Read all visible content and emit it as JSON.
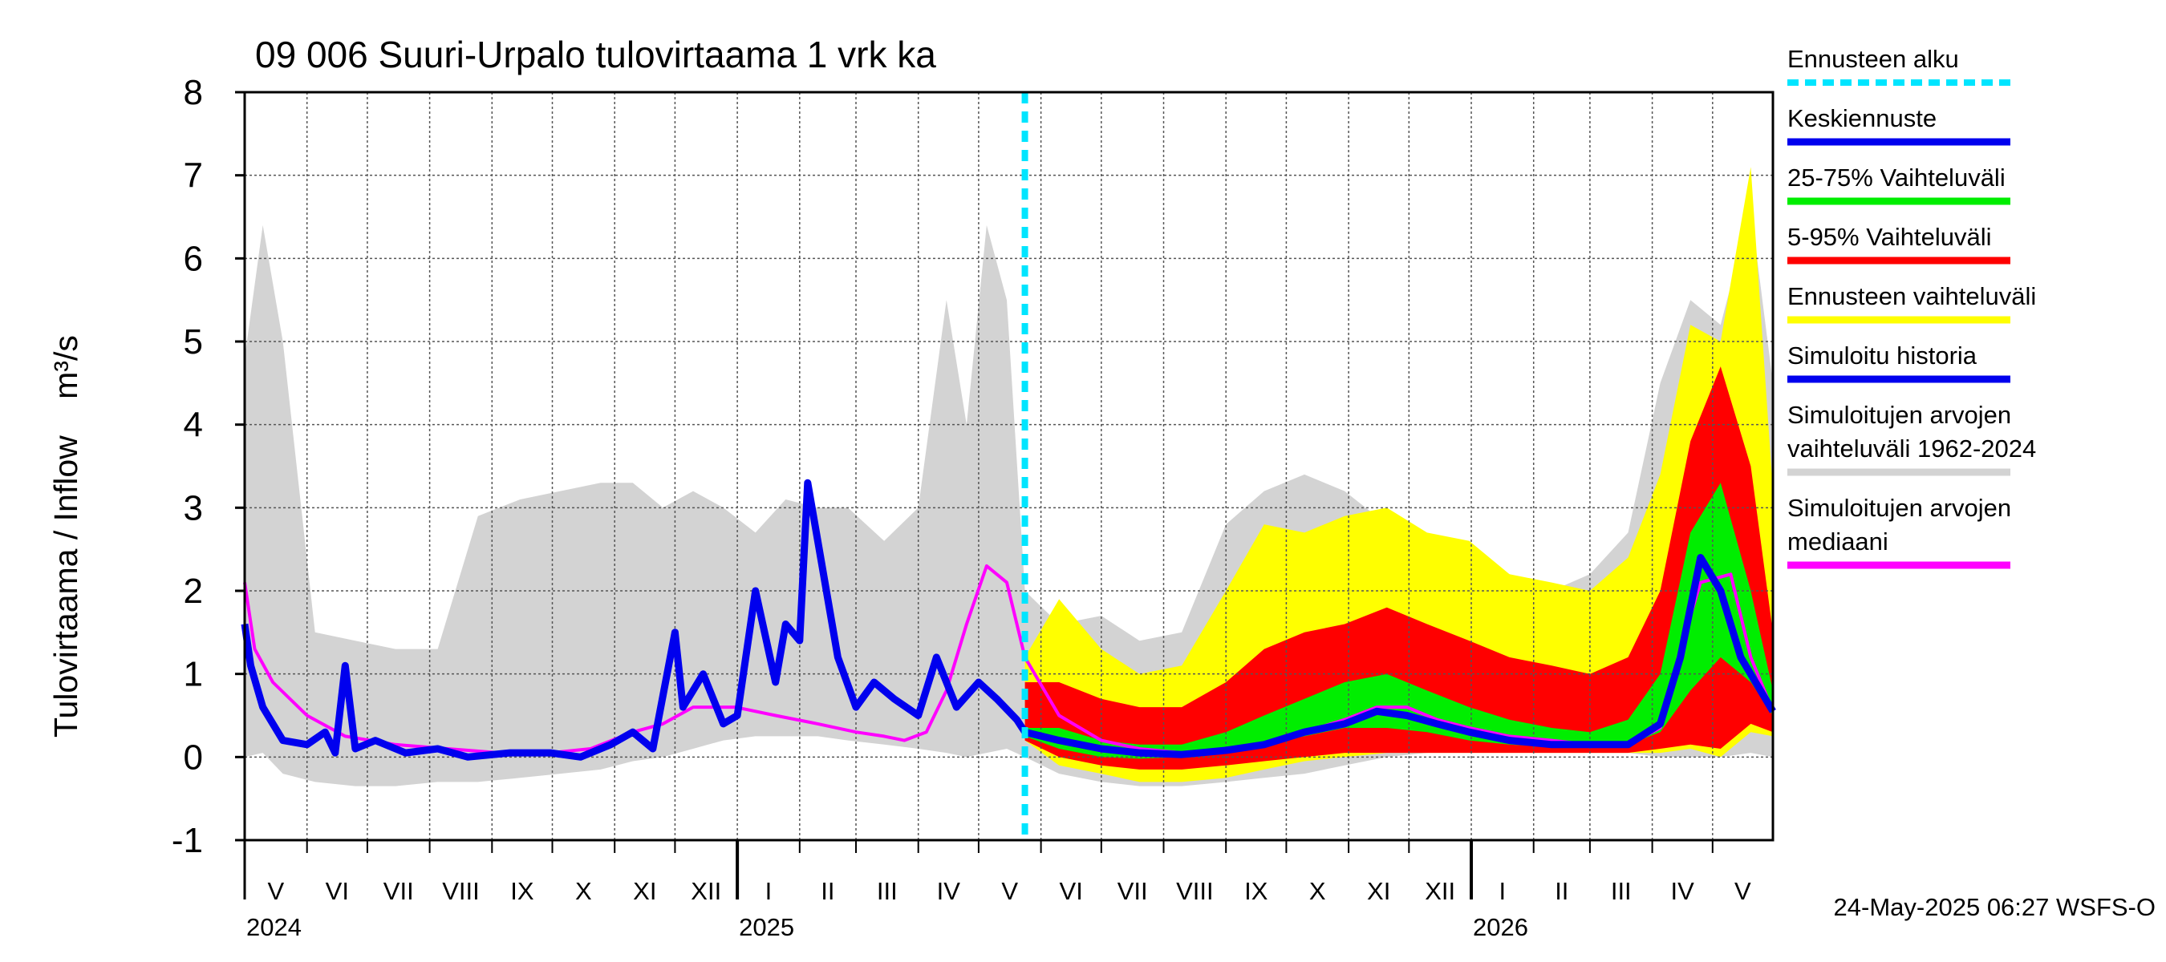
{
  "chart_data": {
    "type": "area",
    "title": "09 006 Suuri-Urpalo tulovirtaama 1 vrk ka",
    "ylabel_fi": "Tulovirtaama / Inflow",
    "ylabel_unit": "m³/s",
    "ylim": [
      -1,
      8
    ],
    "yticks": [
      "-1",
      "0",
      "1",
      "2",
      "3",
      "4",
      "5",
      "6",
      "7",
      "8"
    ],
    "grid": true,
    "legend_placement": "right",
    "xlim": [
      "2024-05-01",
      "2026-05-31"
    ],
    "forecast_start": "2025-05-24",
    "month_labels": [
      "V",
      "VI",
      "VII",
      "VIII",
      "IX",
      "X",
      "XI",
      "XII",
      "I",
      "II",
      "III",
      "IV",
      "V",
      "VI",
      "VII",
      "VIII",
      "IX",
      "X",
      "XI",
      "XII",
      "I",
      "II",
      "III",
      "IV",
      "V"
    ],
    "year_labels": [
      {
        "text": "2024",
        "date": "2024-05-01"
      },
      {
        "text": "2025",
        "date": "2025-01-01"
      },
      {
        "text": "2026",
        "date": "2026-01-01"
      }
    ],
    "footer": "24-May-2025 06:27 WSFS-O",
    "legend": [
      {
        "label": "Ennusteen alku",
        "color": "#00e5ff",
        "style": "dashed"
      },
      {
        "label": "Keskiennuste",
        "color": "#0000ee",
        "style": "solid"
      },
      {
        "label": "25-75% Vaihteluväli",
        "color": "#00ee00",
        "style": "solid"
      },
      {
        "label": "5-95% Vaihteluväli",
        "color": "#ff0000",
        "style": "solid"
      },
      {
        "label": "Ennusteen vaihteluväli",
        "color": "#ffff00",
        "style": "solid"
      },
      {
        "label": "Simuloitu historia",
        "color": "#0000ee",
        "style": "solid"
      },
      {
        "label": "Simuloitujen arvojen vaihteluväli 1962-2024",
        "label_lines": [
          "Simuloitujen arvojen",
          "vaihteluväli 1962-2024"
        ],
        "color": "#d3d3d3",
        "style": "solid"
      },
      {
        "label": "Simuloitujen arvojen mediaani",
        "label_lines": [
          "Simuloitujen arvojen",
          "mediaani"
        ],
        "color": "#ff00ff",
        "style": "solid"
      }
    ],
    "series": [
      {
        "name": "Simuloitujen arvojen vaihteluväli 1962-2024",
        "kind": "band",
        "color": "#d3d3d3",
        "x": [
          "2024-05-01",
          "2024-05-10",
          "2024-05-20",
          "2024-06-05",
          "2024-06-25",
          "2024-07-15",
          "2024-08-05",
          "2024-08-25",
          "2024-09-15",
          "2024-10-05",
          "2024-10-25",
          "2024-11-10",
          "2024-11-25",
          "2024-12-10",
          "2024-12-25",
          "2025-01-10",
          "2025-01-25",
          "2025-02-10",
          "2025-02-25",
          "2025-03-15",
          "2025-04-01",
          "2025-04-15",
          "2025-04-25",
          "2025-05-05",
          "2025-05-15",
          "2025-05-24",
          "2025-06-10",
          "2025-07-01",
          "2025-07-20",
          "2025-08-10",
          "2025-09-01",
          "2025-09-20",
          "2025-10-10",
          "2025-10-30",
          "2025-11-20",
          "2025-12-10",
          "2025-12-31",
          "2026-01-20",
          "2026-02-10",
          "2026-03-01",
          "2026-03-20",
          "2026-04-05",
          "2026-04-20",
          "2026-05-05",
          "2026-05-20",
          "2026-05-31"
        ],
        "low": [
          0.0,
          0.05,
          -0.2,
          -0.3,
          -0.35,
          -0.35,
          -0.3,
          -0.3,
          -0.25,
          -0.2,
          -0.15,
          -0.05,
          0.0,
          0.1,
          0.2,
          0.25,
          0.25,
          0.25,
          0.2,
          0.15,
          0.1,
          0.05,
          0.0,
          0.05,
          0.1,
          0.0,
          -0.2,
          -0.3,
          -0.35,
          -0.35,
          -0.3,
          -0.25,
          -0.2,
          -0.1,
          0.0,
          0.05,
          0.1,
          0.1,
          0.1,
          0.05,
          0.05,
          0.0,
          0.0,
          0.0,
          0.05,
          0.0
        ],
        "high": [
          4.8,
          6.4,
          5.0,
          1.5,
          1.4,
          1.3,
          1.3,
          2.9,
          3.1,
          3.2,
          3.3,
          3.3,
          3.0,
          3.2,
          3.0,
          2.7,
          3.1,
          3.0,
          3.0,
          2.6,
          3.0,
          5.5,
          4.0,
          6.4,
          5.5,
          2.0,
          1.6,
          1.7,
          1.4,
          1.5,
          2.8,
          3.2,
          3.4,
          3.2,
          2.8,
          2.6,
          2.4,
          2.2,
          2.0,
          2.2,
          2.7,
          4.5,
          5.5,
          5.2,
          6.6,
          4.5
        ]
      },
      {
        "name": "Ennusteen vaihteluväli",
        "kind": "band",
        "color": "#ffff00",
        "x": [
          "2025-05-24",
          "2025-06-10",
          "2025-07-01",
          "2025-07-20",
          "2025-08-10",
          "2025-09-01",
          "2025-09-20",
          "2025-10-10",
          "2025-10-30",
          "2025-11-20",
          "2025-12-10",
          "2025-12-31",
          "2026-01-20",
          "2026-02-10",
          "2026-03-01",
          "2026-03-20",
          "2026-04-05",
          "2026-04-20",
          "2026-05-05",
          "2026-05-20",
          "2026-05-31"
        ],
        "low": [
          0.2,
          -0.1,
          -0.2,
          -0.3,
          -0.3,
          -0.25,
          -0.15,
          -0.05,
          0.0,
          0.05,
          0.05,
          0.05,
          0.05,
          0.05,
          0.05,
          0.05,
          0.05,
          0.1,
          0.0,
          0.3,
          0.25
        ],
        "high": [
          1.2,
          1.9,
          1.3,
          1.0,
          1.1,
          2.0,
          2.8,
          2.7,
          2.9,
          3.0,
          2.7,
          2.6,
          2.2,
          2.1,
          2.0,
          2.4,
          3.4,
          5.2,
          5.0,
          7.1,
          3.2
        ]
      },
      {
        "name": "5-95% Vaihteluväli",
        "kind": "band",
        "color": "#ff0000",
        "x": [
          "2025-05-24",
          "2025-06-10",
          "2025-07-01",
          "2025-07-20",
          "2025-08-10",
          "2025-09-01",
          "2025-09-20",
          "2025-10-10",
          "2025-10-30",
          "2025-11-20",
          "2025-12-10",
          "2025-12-31",
          "2026-01-20",
          "2026-02-10",
          "2026-03-01",
          "2026-03-20",
          "2026-04-05",
          "2026-04-20",
          "2026-05-05",
          "2026-05-20",
          "2026-05-31"
        ],
        "low": [
          0.2,
          0.0,
          -0.1,
          -0.15,
          -0.15,
          -0.1,
          -0.05,
          0.0,
          0.05,
          0.05,
          0.05,
          0.05,
          0.05,
          0.05,
          0.05,
          0.05,
          0.1,
          0.15,
          0.1,
          0.4,
          0.3
        ],
        "high": [
          0.9,
          0.9,
          0.7,
          0.6,
          0.6,
          0.9,
          1.3,
          1.5,
          1.6,
          1.8,
          1.6,
          1.4,
          1.2,
          1.1,
          1.0,
          1.2,
          2.0,
          3.8,
          4.7,
          3.5,
          1.5
        ]
      },
      {
        "name": "25-75% Vaihteluväli",
        "kind": "band",
        "color": "#00ee00",
        "x": [
          "2025-05-24",
          "2025-06-10",
          "2025-07-01",
          "2025-07-20",
          "2025-08-10",
          "2025-09-01",
          "2025-09-20",
          "2025-10-10",
          "2025-10-30",
          "2025-11-20",
          "2025-12-10",
          "2025-12-31",
          "2026-01-20",
          "2026-02-10",
          "2026-03-01",
          "2026-03-20",
          "2026-04-05",
          "2026-04-20",
          "2026-05-05",
          "2026-05-20",
          "2026-05-31"
        ],
        "low": [
          0.25,
          0.1,
          0.0,
          -0.02,
          0.0,
          0.05,
          0.15,
          0.25,
          0.35,
          0.35,
          0.3,
          0.2,
          0.15,
          0.12,
          0.12,
          0.15,
          0.3,
          0.8,
          1.2,
          0.9,
          0.5
        ],
        "high": [
          0.35,
          0.35,
          0.2,
          0.15,
          0.15,
          0.3,
          0.5,
          0.7,
          0.9,
          1.0,
          0.8,
          0.6,
          0.45,
          0.35,
          0.3,
          0.45,
          1.0,
          2.7,
          3.3,
          2.0,
          0.8
        ]
      },
      {
        "name": "Simuloitujen arvojen mediaani",
        "kind": "line",
        "color": "#ff00ff",
        "x": [
          "2024-05-01",
          "2024-05-06",
          "2024-05-15",
          "2024-06-01",
          "2024-06-20",
          "2024-07-15",
          "2024-08-10",
          "2024-09-05",
          "2024-09-30",
          "2024-10-20",
          "2024-11-10",
          "2024-11-25",
          "2024-12-10",
          "2024-12-31",
          "2025-01-20",
          "2025-02-10",
          "2025-03-01",
          "2025-03-15",
          "2025-03-25",
          "2025-04-05",
          "2025-04-15",
          "2025-04-25",
          "2025-05-05",
          "2025-05-15",
          "2025-05-24",
          "2025-06-10",
          "2025-07-01",
          "2025-07-20",
          "2025-08-10",
          "2025-09-01",
          "2025-09-20",
          "2025-10-10",
          "2025-10-30",
          "2025-11-15",
          "2025-11-30",
          "2025-12-15",
          "2025-12-31",
          "2026-01-20",
          "2026-02-10",
          "2026-03-01",
          "2026-03-20",
          "2026-04-05",
          "2026-04-15",
          "2026-04-25",
          "2026-05-10",
          "2026-05-20",
          "2026-05-31"
        ],
        "y": [
          2.1,
          1.3,
          0.9,
          0.5,
          0.25,
          0.15,
          0.1,
          0.05,
          0.05,
          0.1,
          0.3,
          0.4,
          0.6,
          0.6,
          0.5,
          0.4,
          0.3,
          0.25,
          0.2,
          0.3,
          0.8,
          1.6,
          2.3,
          2.1,
          1.2,
          0.5,
          0.2,
          0.1,
          0.05,
          0.08,
          0.15,
          0.3,
          0.45,
          0.6,
          0.6,
          0.45,
          0.35,
          0.25,
          0.2,
          0.15,
          0.15,
          0.35,
          1.3,
          2.1,
          2.2,
          1.2,
          0.55
        ]
      },
      {
        "name": "Simuloitu historia",
        "kind": "line",
        "color": "#0000ee",
        "x": [
          "2024-05-01",
          "2024-05-04",
          "2024-05-10",
          "2024-05-20",
          "2024-06-01",
          "2024-06-10",
          "2024-06-15",
          "2024-06-20",
          "2024-06-25",
          "2024-07-05",
          "2024-07-20",
          "2024-08-05",
          "2024-08-20",
          "2024-09-10",
          "2024-09-30",
          "2024-10-15",
          "2024-10-30",
          "2024-11-10",
          "2024-11-20",
          "2024-12-01",
          "2024-12-05",
          "2024-12-15",
          "2024-12-25",
          "2025-01-01",
          "2025-01-10",
          "2025-01-20",
          "2025-01-25",
          "2025-02-01",
          "2025-02-05",
          "2025-02-10",
          "2025-02-20",
          "2025-03-01",
          "2025-03-10",
          "2025-03-20",
          "2025-04-01",
          "2025-04-10",
          "2025-04-20",
          "2025-05-01",
          "2025-05-10",
          "2025-05-20",
          "2025-05-24"
        ],
        "y": [
          1.6,
          1.1,
          0.6,
          0.2,
          0.15,
          0.3,
          0.05,
          1.1,
          0.1,
          0.2,
          0.05,
          0.1,
          0.0,
          0.05,
          0.05,
          0.0,
          0.15,
          0.3,
          0.1,
          1.5,
          0.6,
          1.0,
          0.4,
          0.5,
          2.0,
          0.9,
          1.6,
          1.4,
          3.3,
          2.6,
          1.2,
          0.6,
          0.9,
          0.7,
          0.5,
          1.2,
          0.6,
          0.9,
          0.7,
          0.45,
          0.3
        ]
      },
      {
        "name": "Keskiennuste",
        "kind": "line",
        "color": "#0000ee",
        "x": [
          "2025-05-24",
          "2025-06-10",
          "2025-07-01",
          "2025-07-20",
          "2025-08-10",
          "2025-09-01",
          "2025-09-20",
          "2025-10-10",
          "2025-10-30",
          "2025-11-15",
          "2025-11-30",
          "2025-12-15",
          "2025-12-31",
          "2026-01-20",
          "2026-02-10",
          "2026-03-01",
          "2026-03-20",
          "2026-04-05",
          "2026-04-15",
          "2026-04-25",
          "2026-05-05",
          "2026-05-15",
          "2026-05-31"
        ],
        "y": [
          0.3,
          0.2,
          0.1,
          0.05,
          0.03,
          0.08,
          0.15,
          0.3,
          0.4,
          0.55,
          0.5,
          0.4,
          0.3,
          0.2,
          0.15,
          0.15,
          0.15,
          0.4,
          1.2,
          2.4,
          2.0,
          1.2,
          0.55
        ]
      }
    ]
  }
}
